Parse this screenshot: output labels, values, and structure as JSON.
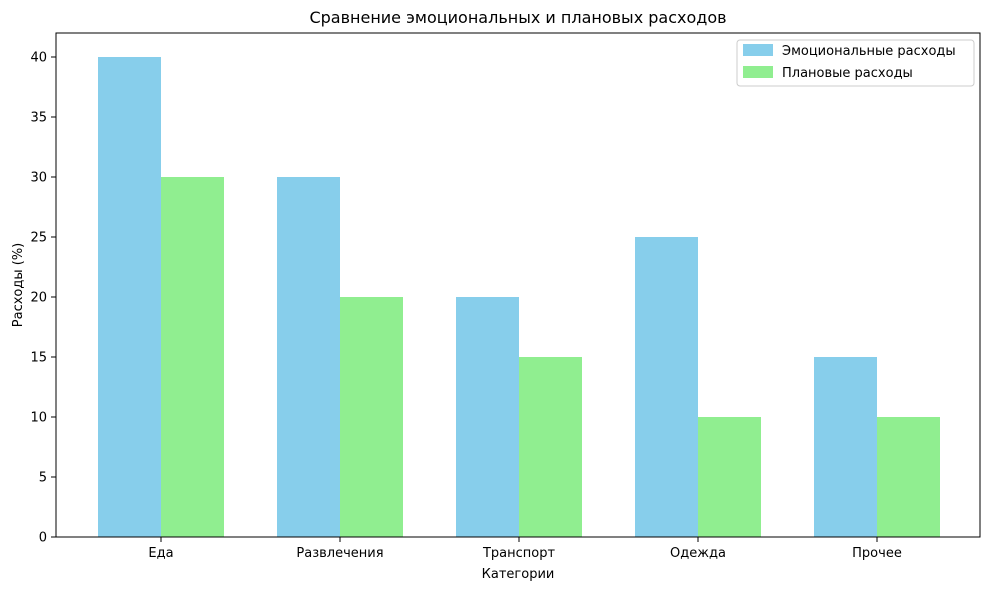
{
  "chart_data": {
    "type": "bar",
    "title": "Сравнение эмоциональных и плановых расходов",
    "xlabel": "Категории",
    "ylabel": "Расходы (%)",
    "categories": [
      "Еда",
      "Развлечения",
      "Транспорт",
      "Одежда",
      "Прочее"
    ],
    "series": [
      {
        "name": "Эмоциональные расходы",
        "values": [
          40,
          30,
          20,
          25,
          15
        ],
        "color": "#87CEEB"
      },
      {
        "name": "Плановые расходы",
        "values": [
          30,
          20,
          15,
          10,
          10
        ],
        "color": "#90EE90"
      }
    ],
    "ylim": [
      0,
      42
    ],
    "yticks": [
      0,
      5,
      10,
      15,
      20,
      25,
      30,
      35,
      40
    ],
    "grid": false,
    "legend_position": "top-right"
  }
}
